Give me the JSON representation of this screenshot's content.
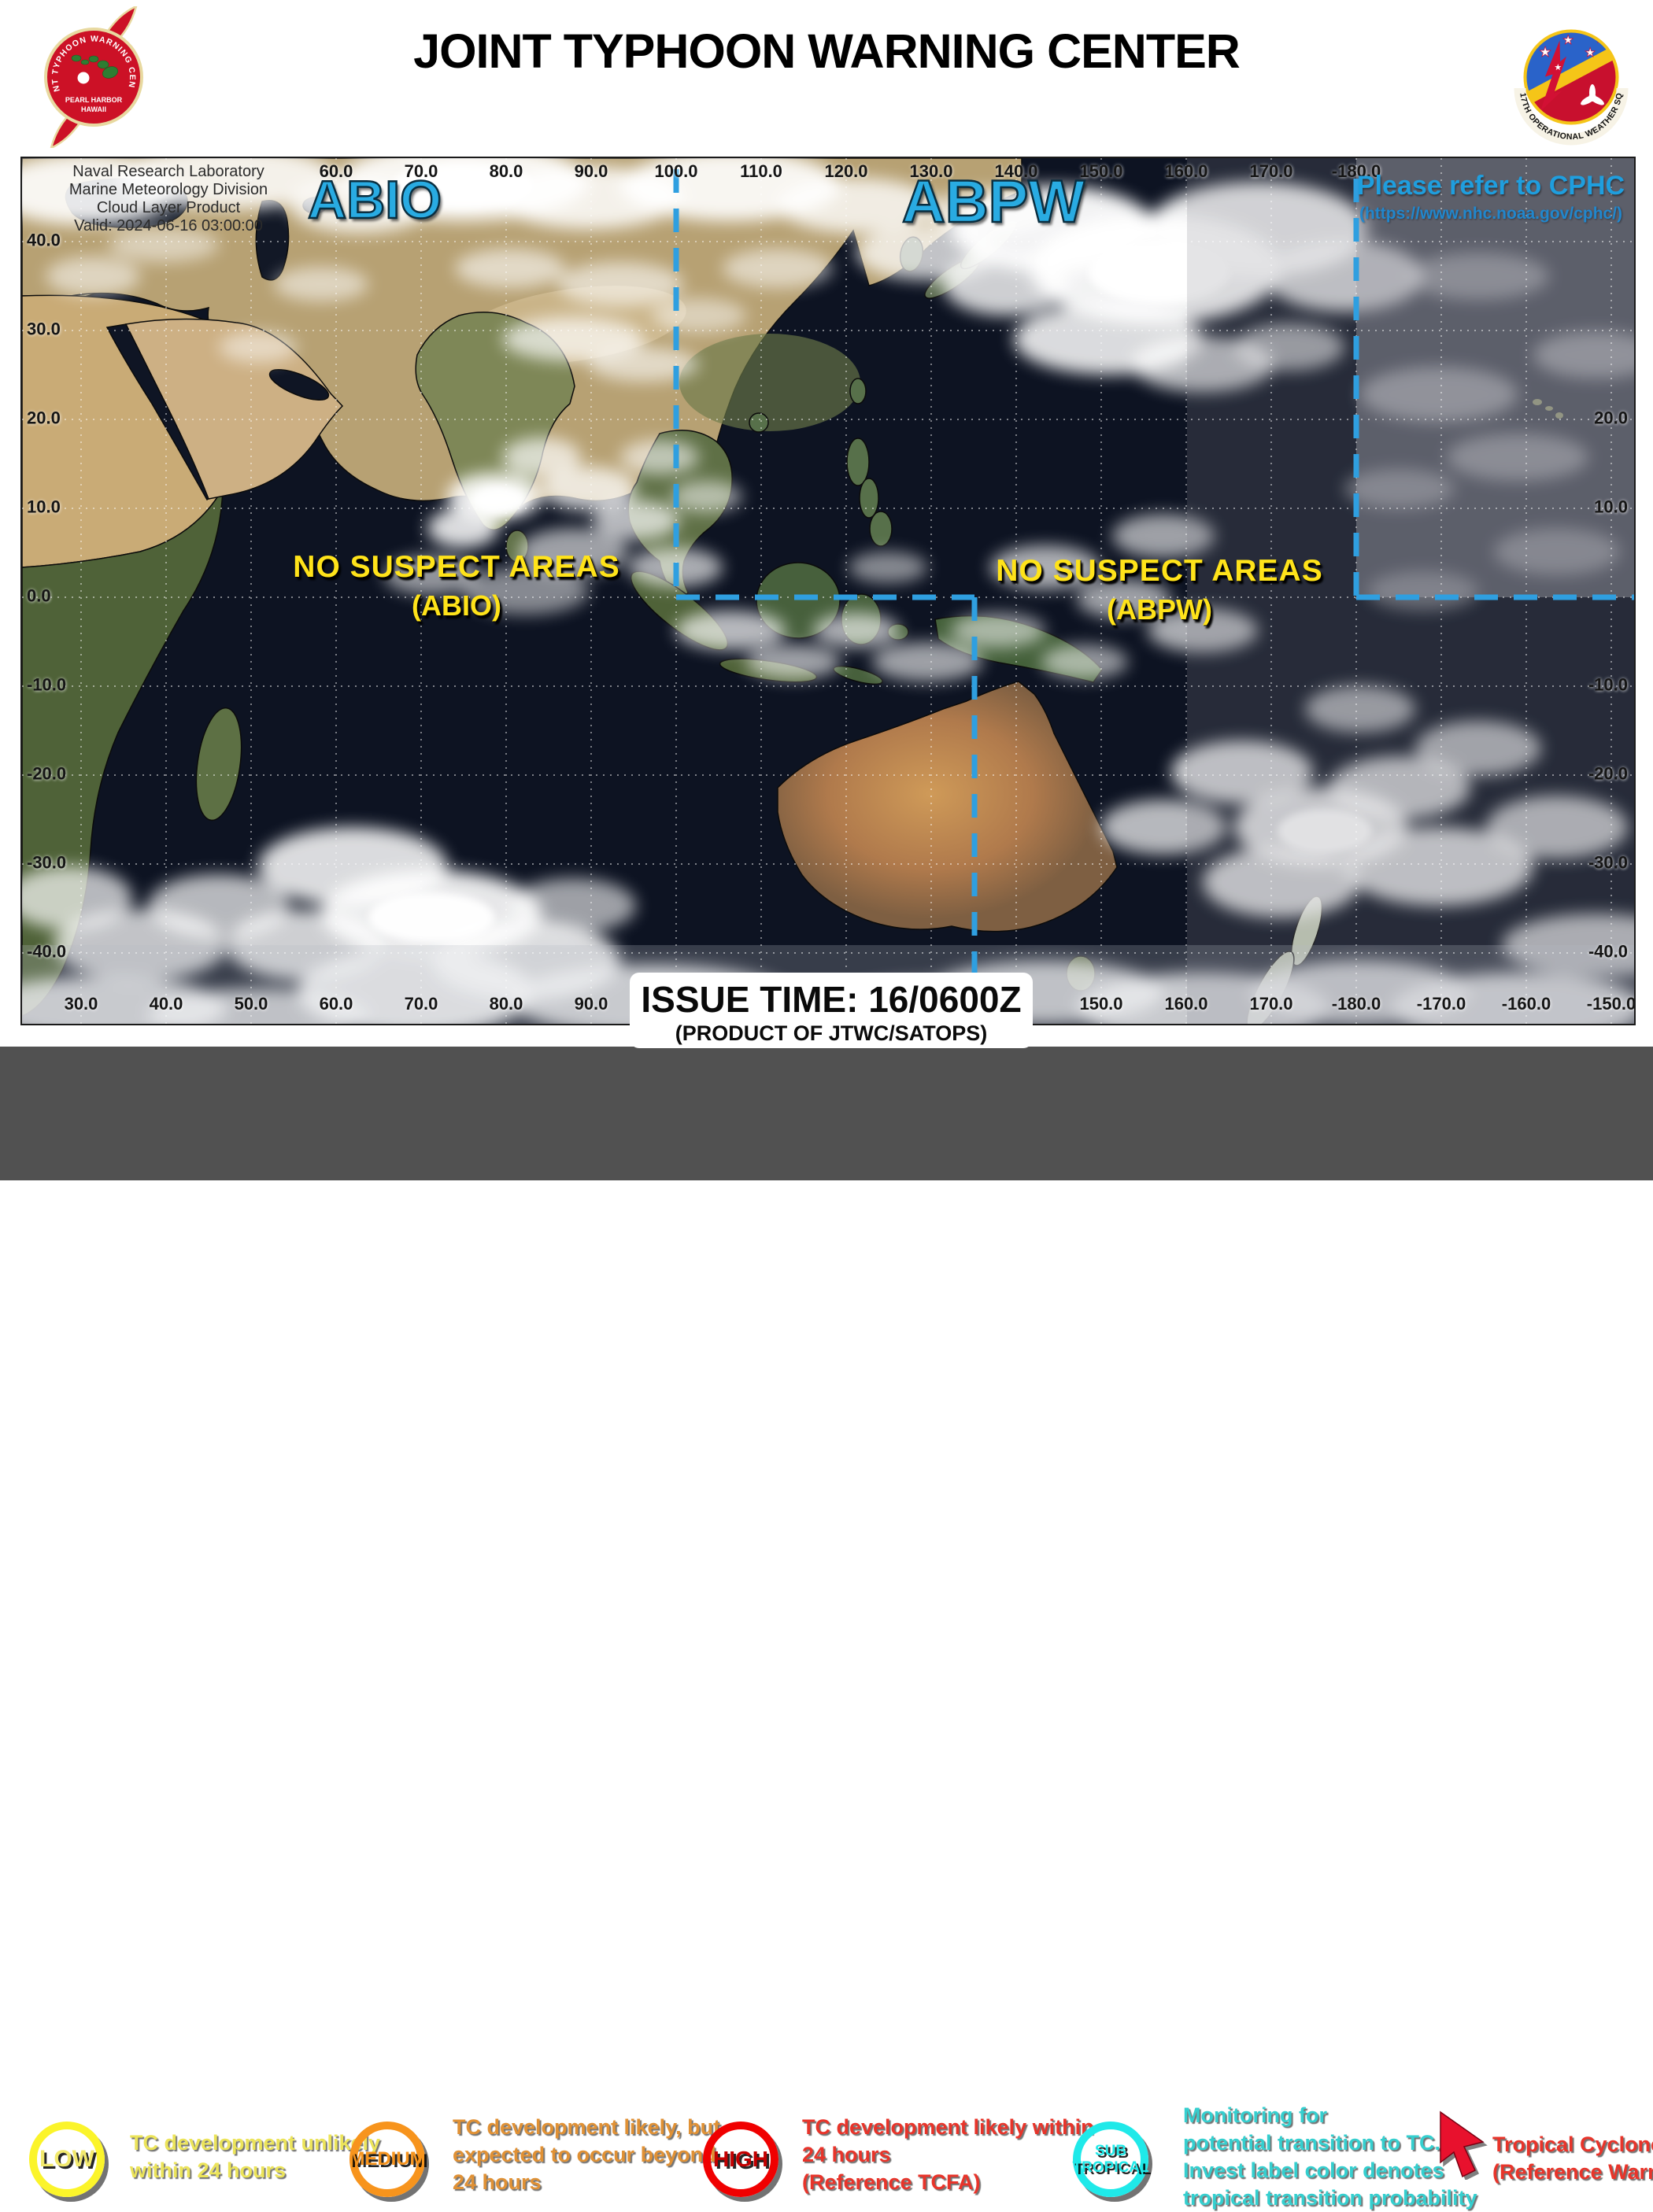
{
  "header": {
    "title": "JOINT TYPHOON WARNING CENTER",
    "jtwc_seal": {
      "ring_text": "JOINT TYPHOON WARNING CENTER",
      "line1": "PEARL HARBOR",
      "line2": "HAWAII"
    },
    "ows_seal": {
      "ring_text": "17TH OPERATIONAL WEATHER SQ"
    }
  },
  "map": {
    "credit": [
      "Naval Research Laboratory",
      "Marine Meteorology Division",
      "Cloud Layer Product",
      "Valid: 2024-06-16 03:00:00"
    ],
    "basin_left": "ABIO",
    "basin_right": "ABPW",
    "cphc": {
      "title": "Please refer to CPHC",
      "url": "(https://www.nhc.noaa.gov/cphc/)"
    },
    "no_suspect_left": {
      "line1": "NO SUSPECT AREAS",
      "line2": "(ABIO)"
    },
    "no_suspect_right": {
      "line1": "NO SUSPECT AREAS",
      "line2": "(ABPW)"
    },
    "issue": {
      "line1": "ISSUE TIME: 16/0600Z",
      "line2": "(PRODUCT OF JTWC/SATOPS)"
    },
    "grid": {
      "top_lon": [
        "60.0",
        "70.0",
        "80.0",
        "90.0",
        "100.0",
        "110.0",
        "120.0",
        "130.0",
        "140.0",
        "150.0",
        "160.0",
        "170.0",
        "-180.0"
      ],
      "bottom_lon_left": [
        "30.0",
        "40.0",
        "50.0",
        "60.0",
        "70.0",
        "80.0",
        "90.0"
      ],
      "bottom_lon_right": [
        "150.0",
        "160.0",
        "170.0",
        "-180.0",
        "-170.0",
        "-160.0",
        "-150.0"
      ],
      "left_lat": [
        "40.0",
        "30.0",
        "20.0",
        "10.0",
        "0.0",
        "-10.0",
        "-20.0",
        "-30.0",
        "-40.0"
      ],
      "right_lat": [
        "20.0",
        "10.0",
        "-10.0",
        "-20.0",
        "-30.0",
        "-40.0"
      ]
    },
    "colors": {
      "boundary_dash": "#2f9fe0",
      "basin_label": "#29abe2",
      "suspect_label": "#ffe31a"
    }
  },
  "legend": {
    "items": [
      {
        "badge": "LOW",
        "color": "#fbf42a",
        "lines": [
          "TC development  unlikely",
          "within  24 hours"
        ]
      },
      {
        "badge": "MEDIUM",
        "color": "#f7941d",
        "lines": [
          "TC development  likely,  but",
          "expected  to  occur  beyond",
          "24 hours"
        ]
      },
      {
        "badge": "HIGH",
        "color": "#f00000",
        "lines": [
          "TC development  likely  within",
          "24 hours",
          "(Reference TCFA)"
        ]
      },
      {
        "badge_line1": "SUB",
        "badge_line2": "TROPICAL",
        "color": "#1fe9e9",
        "lines": [
          "Monitoring  for",
          "potential  transition  to TC.",
          "Invest  label  color  denotes",
          "tropical  transition  probability"
        ]
      },
      {
        "badge": "tropical-cyclone-arrow",
        "color": "#e8342a",
        "lines": [
          "Tropical  Cyclone",
          "(Reference Warning)"
        ]
      }
    ]
  }
}
